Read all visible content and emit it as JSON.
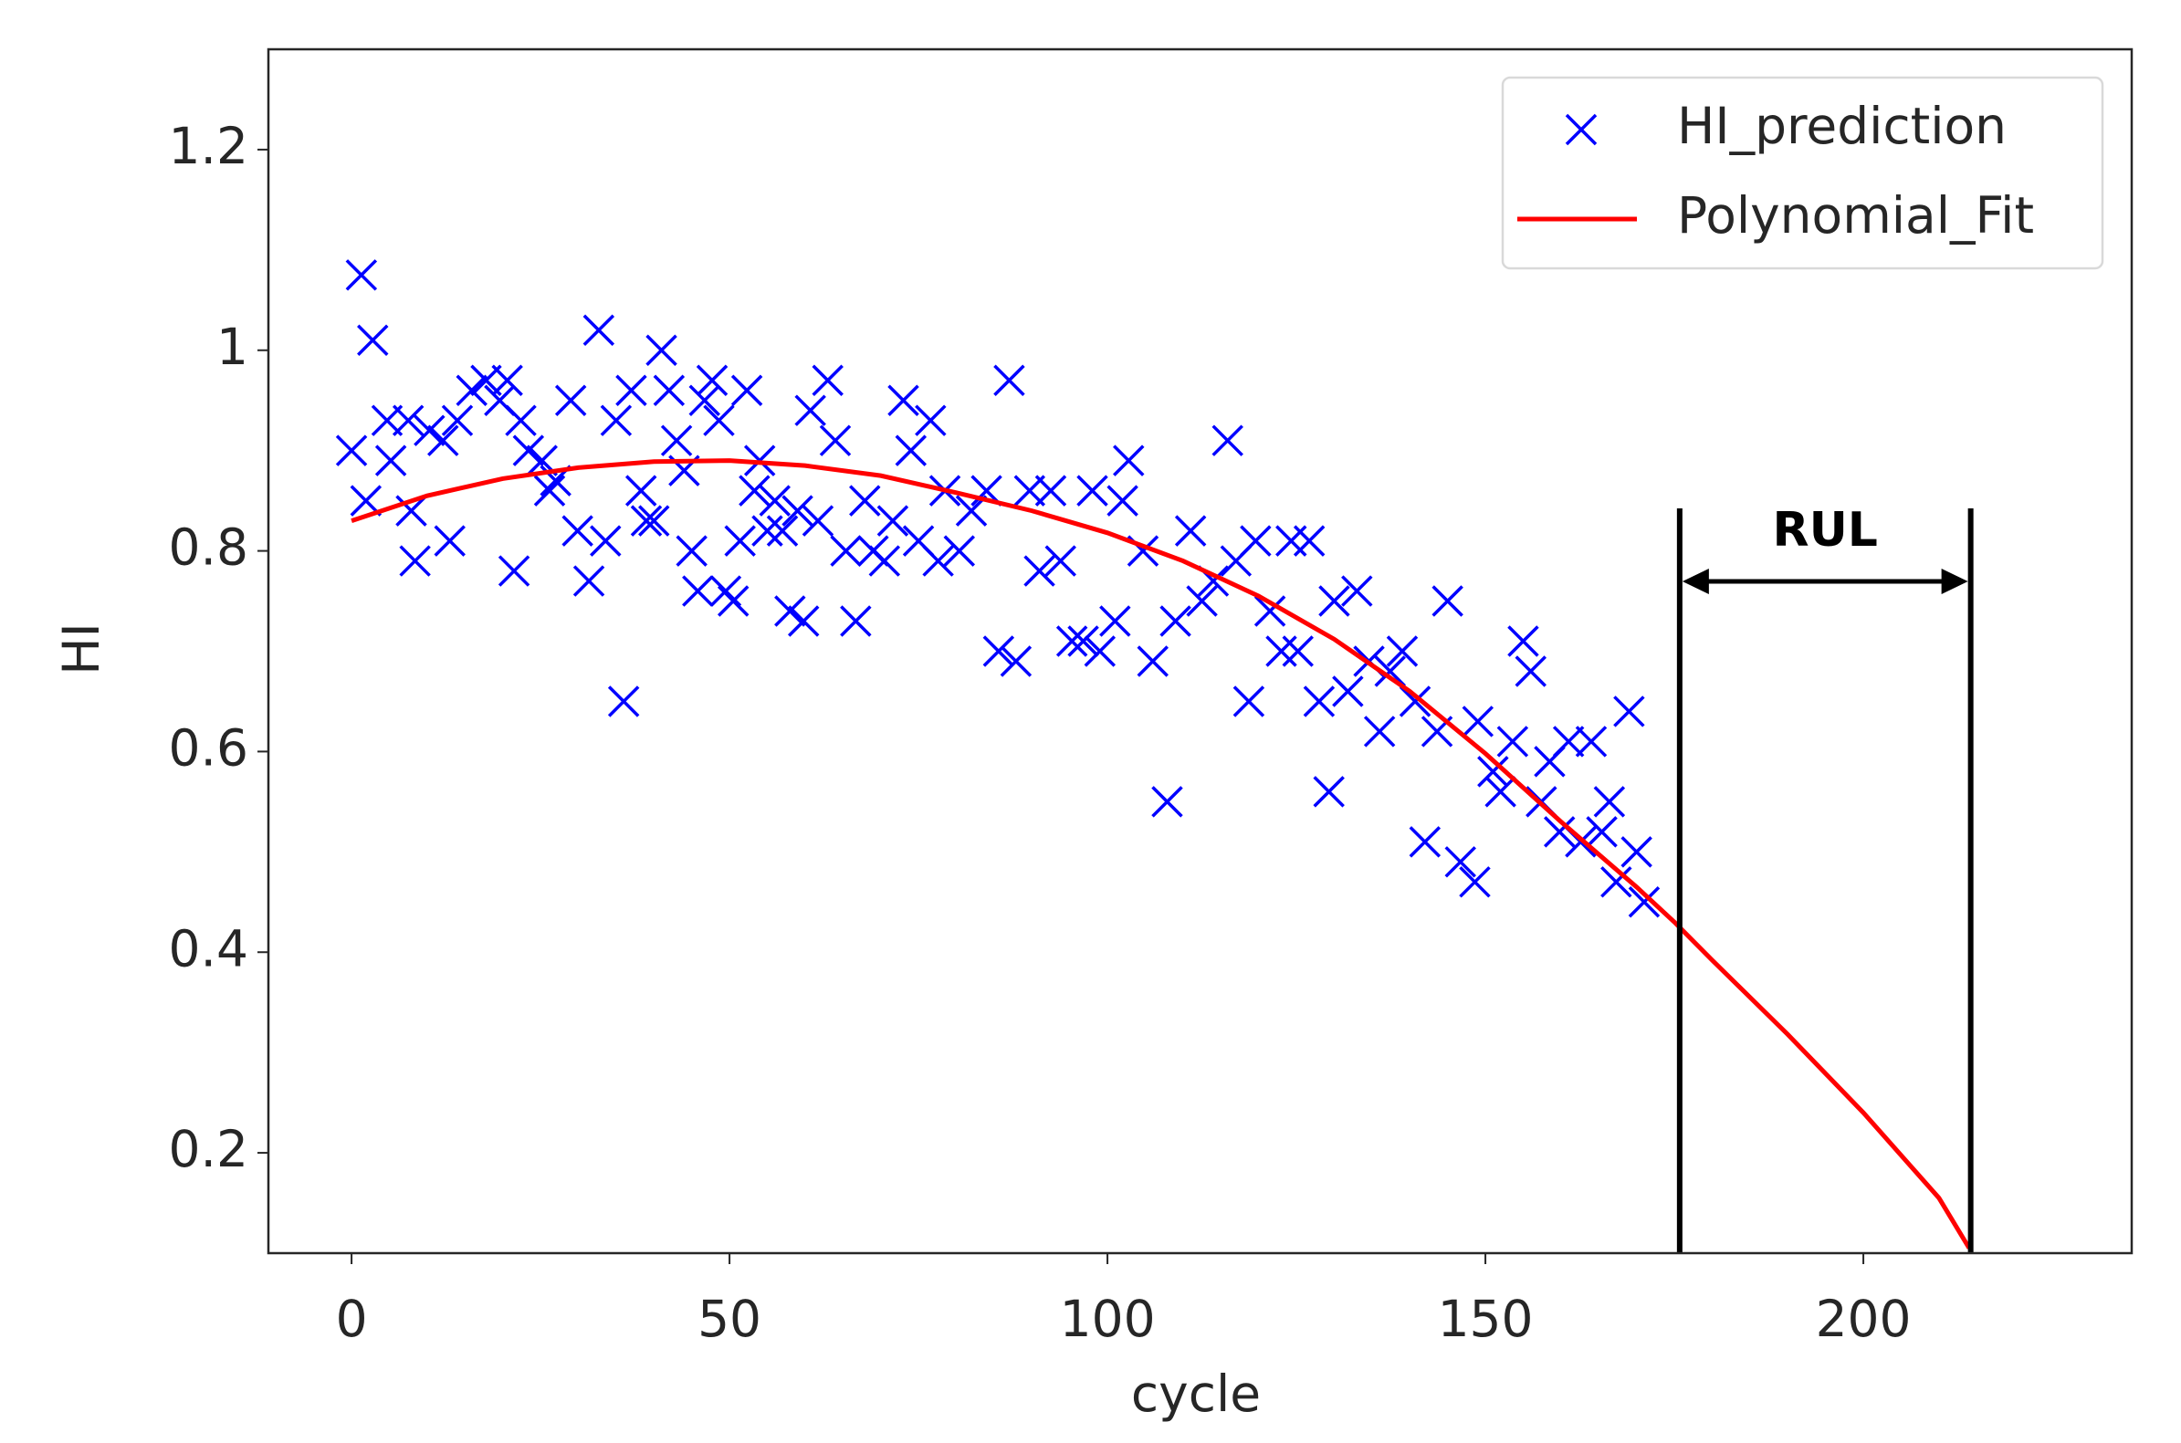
{
  "chart_data": {
    "type": "scatter",
    "xlabel": "cycle",
    "ylabel": "HI",
    "xlim": [
      -11,
      235.5
    ],
    "ylim": [
      0.1,
      1.3
    ],
    "xticks": [
      0,
      50,
      100,
      150,
      200
    ],
    "yticks": [
      0.2,
      0.4,
      0.6,
      0.8,
      1.0,
      1.2
    ],
    "legend": "upper right",
    "series": [
      {
        "name": "HI_prediction",
        "type": "scatter",
        "color": "#0000ff",
        "x": [
          0,
          1.3,
          2.8,
          1.9,
          4.7,
          5.2,
          7.5,
          8.4,
          7.9,
          10.3,
          12.1,
          13,
          14,
          15.9,
          17.8,
          19.6,
          20.6,
          21.5,
          22.4,
          23.4,
          25.2,
          26.2,
          27,
          29,
          29.9,
          31.4,
          32.7,
          33.6,
          35,
          36,
          37,
          38.3,
          39,
          40,
          41,
          42,
          43,
          44,
          45,
          45.8,
          46.7,
          47.7,
          48.6,
          49.5,
          50.5,
          51.4,
          52.3,
          53.3,
          54,
          55,
          56,
          57,
          58,
          59,
          59.8,
          60.7,
          61.7,
          63,
          64,
          65.4,
          66.7,
          67.9,
          69,
          70.5,
          71.6,
          73,
          74,
          75,
          76.6,
          77.6,
          78.5,
          80.4,
          82,
          84,
          85.6,
          87,
          87.9,
          89.7,
          91,
          92.5,
          93.8,
          95.3,
          96.8,
          98,
          99,
          101,
          102,
          102.8,
          104.7,
          106,
          107.9,
          109,
          111,
          112.5,
          114,
          115.9,
          117,
          118.7,
          119.6,
          121.5,
          123,
          124.3,
          125.2,
          126.7,
          128,
          129.3,
          130,
          131.8,
          133,
          134.6,
          136,
          137.4,
          139,
          140.7,
          142,
          143.6,
          145,
          146.7,
          148.6,
          149,
          151,
          152,
          153.6,
          155,
          156,
          157.4,
          158.5,
          159.8,
          161,
          162.6,
          164,
          165.4,
          166.4,
          167.3,
          169,
          170,
          171
        ],
        "values": [
          0.9,
          1.075,
          1.01,
          0.85,
          0.93,
          0.89,
          0.93,
          0.79,
          0.84,
          0.92,
          0.91,
          0.81,
          0.93,
          0.96,
          0.97,
          0.95,
          0.97,
          0.78,
          0.93,
          0.9,
          0.89,
          0.86,
          0.87,
          0.95,
          0.82,
          0.77,
          1.02,
          0.81,
          0.93,
          0.65,
          0.96,
          0.86,
          0.83,
          0.83,
          1.0,
          0.96,
          0.91,
          0.88,
          0.8,
          0.76,
          0.95,
          0.97,
          0.93,
          0.76,
          0.75,
          0.81,
          0.96,
          0.86,
          0.89,
          0.82,
          0.85,
          0.82,
          0.74,
          0.84,
          0.73,
          0.94,
          0.83,
          0.97,
          0.91,
          0.8,
          0.73,
          0.85,
          0.8,
          0.79,
          0.83,
          0.95,
          0.9,
          0.81,
          0.93,
          0.79,
          0.86,
          0.8,
          0.84,
          0.86,
          0.7,
          0.97,
          0.69,
          0.86,
          0.78,
          0.86,
          0.79,
          0.71,
          0.71,
          0.86,
          0.7,
          0.73,
          0.85,
          0.89,
          0.8,
          0.69,
          0.55,
          0.73,
          0.82,
          0.75,
          0.77,
          0.91,
          0.79,
          0.65,
          0.81,
          0.74,
          0.7,
          0.81,
          0.7,
          0.81,
          0.65,
          0.56,
          0.75,
          0.66,
          0.76,
          0.69,
          0.62,
          0.68,
          0.7,
          0.65,
          0.51,
          0.62,
          0.75,
          0.49,
          0.47,
          0.63,
          0.58,
          0.56,
          0.61,
          0.71,
          0.68,
          0.55,
          0.59,
          0.52,
          0.61,
          0.51,
          0.61,
          0.52,
          0.55,
          0.47,
          0.64,
          0.5,
          0.45
        ]
      },
      {
        "name": "Polynomial_Fit",
        "type": "line",
        "color": "#ff0000",
        "x": [
          0,
          10,
          20,
          30,
          40,
          50,
          60,
          70,
          80,
          90,
          100,
          110,
          120,
          130,
          140,
          150,
          160,
          170,
          175,
          180,
          190,
          200,
          210,
          214
        ],
        "values": [
          0.83,
          0.855,
          0.872,
          0.883,
          0.889,
          0.89,
          0.885,
          0.875,
          0.858,
          0.84,
          0.818,
          0.79,
          0.755,
          0.712,
          0.66,
          0.598,
          0.53,
          0.465,
          0.43,
          0.392,
          0.318,
          0.24,
          0.155,
          0.105
        ]
      }
    ],
    "annotations": [
      {
        "text": "RUL",
        "x": [
          175.7,
          214.2
        ]
      }
    ]
  }
}
